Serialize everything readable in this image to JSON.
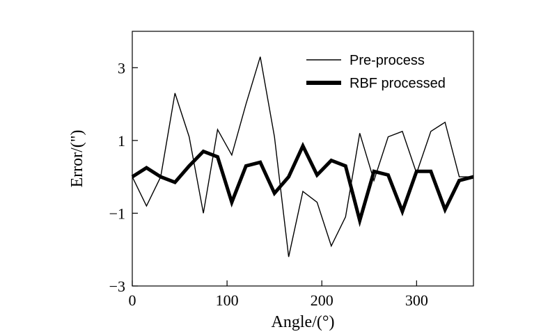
{
  "chart_data": {
    "type": "line",
    "xlabel": "Angle/(°)",
    "ylabel": "Error/(\")",
    "xlim": [
      0,
      360
    ],
    "ylim": [
      -3,
      4
    ],
    "x_ticks": [
      0,
      100,
      200,
      300
    ],
    "x_tick_labels": [
      "0",
      "100",
      "200",
      "300"
    ],
    "y_ticks": [
      -3,
      -1,
      1,
      3
    ],
    "y_tick_labels": [
      "−3",
      "−1",
      "1",
      "3"
    ],
    "grid": false,
    "legend_position": "top-right",
    "series": [
      {
        "name": "Pre-process",
        "style": "thin",
        "x": [
          0,
          15,
          30,
          45,
          60,
          75,
          90,
          105,
          120,
          135,
          150,
          165,
          180,
          195,
          210,
          225,
          240,
          255,
          270,
          285,
          300,
          315,
          330,
          345,
          360
        ],
        "y": [
          0,
          -0.8,
          0,
          2.3,
          1.1,
          -1.0,
          1.3,
          0.6,
          2.0,
          3.3,
          1.1,
          -2.2,
          -0.4,
          -0.7,
          -1.9,
          -1.1,
          1.2,
          -0.1,
          1.1,
          1.25,
          0.1,
          1.25,
          1.5,
          0,
          0
        ]
      },
      {
        "name": "RBF processed",
        "style": "thick",
        "x": [
          0,
          15,
          30,
          45,
          60,
          75,
          90,
          105,
          120,
          135,
          150,
          165,
          180,
          195,
          210,
          225,
          240,
          255,
          270,
          285,
          300,
          315,
          330,
          345,
          360
        ],
        "y": [
          0,
          0.25,
          0,
          -0.15,
          0.3,
          0.7,
          0.55,
          -0.7,
          0.3,
          0.4,
          -0.45,
          0,
          0.85,
          0.05,
          0.45,
          0.3,
          -1.2,
          0.15,
          0.05,
          -0.95,
          0.15,
          0.15,
          -0.9,
          -0.1,
          0
        ]
      }
    ]
  }
}
